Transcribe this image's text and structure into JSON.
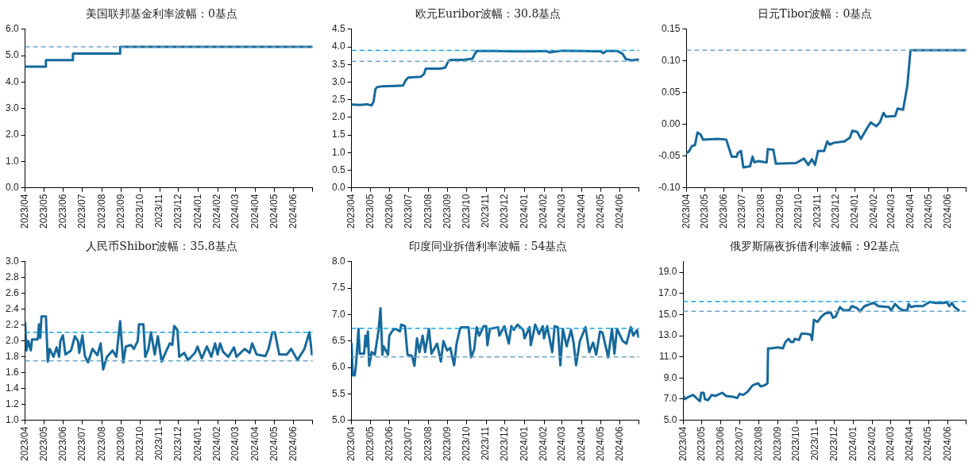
{
  "chart_data": [
    {
      "type": "step",
      "title": "美国联邦基金利率波幅：0基点",
      "marker": "none",
      "grid": false,
      "legend": false,
      "xlim": [
        "2023-04-01",
        "2024-07-01"
      ],
      "xticks": [
        {
          "value": "2023-04",
          "label": "2023/04"
        },
        {
          "value": "2023-05",
          "label": "2023/05"
        },
        {
          "value": "2023-06",
          "label": "2023/06"
        },
        {
          "value": "2023-07",
          "label": "2023/07"
        },
        {
          "value": "2023-08",
          "label": "2023/08"
        },
        {
          "value": "2023-09",
          "label": "2023/09"
        },
        {
          "value": "2023-10",
          "label": "2023/10"
        },
        {
          "value": "2023-11",
          "label": "2023/11"
        },
        {
          "value": "2023-12",
          "label": "2023/12"
        },
        {
          "value": "2024-01",
          "label": "2024/01"
        },
        {
          "value": "2024-02",
          "label": "2024/02"
        },
        {
          "value": "2024-03",
          "label": "2024/03"
        },
        {
          "value": "2024-04",
          "label": "2024/04"
        },
        {
          "value": "2024-05",
          "label": "2024/05"
        },
        {
          "value": "2024-06",
          "label": "2024/06"
        },
        {
          "value": "2024-07",
          "label": null
        }
      ],
      "ylim": [
        0,
        6
      ],
      "yticks": [
        {
          "value": 0,
          "label": "0.0"
        },
        {
          "value": 1,
          "label": "1.0"
        },
        {
          "value": 2,
          "label": "2.0"
        },
        {
          "value": 3,
          "label": "3.0"
        },
        {
          "value": 4,
          "label": "4.0"
        },
        {
          "value": 5,
          "label": "5.0"
        },
        {
          "value": 6,
          "label": "6.0"
        }
      ],
      "ref_lines": [
        {
          "axis": "y",
          "value": 5.33,
          "color": "#6fa4c4",
          "line_style": "dashed"
        }
      ],
      "series": [
        {
          "color": "#17699b",
          "x": [
            "2023-04-01",
            "2023-05-04",
            "2023-06-16",
            "2023-08-30",
            "2024-06-30"
          ],
          "values": [
            4.58,
            4.83,
            5.08,
            5.33,
            5.33
          ]
        }
      ]
    },
    {
      "type": "line",
      "title": "欧元Euribor波幅：30.8基点",
      "marker": "none",
      "grid": false,
      "legend": false,
      "xlim": [
        "2023-04-01",
        "2024-07-01"
      ],
      "xticks": [
        {
          "value": "2023-04",
          "label": "2023/04"
        },
        {
          "value": "2023-05",
          "label": "2023/05"
        },
        {
          "value": "2023-06",
          "label": "2023/06"
        },
        {
          "value": "2023-07",
          "label": "2023/07"
        },
        {
          "value": "2023-08",
          "label": "2023/08"
        },
        {
          "value": "2023-09",
          "label": "2023/09"
        },
        {
          "value": "2023-10",
          "label": "2023/10"
        },
        {
          "value": "2023-11",
          "label": "2023/11"
        },
        {
          "value": "2023-12",
          "label": "2023/12"
        },
        {
          "value": "2024-01",
          "label": "2024/01"
        },
        {
          "value": "2024-02",
          "label": "2024/02"
        },
        {
          "value": "2024-03",
          "label": "2024/03"
        },
        {
          "value": "2024-04",
          "label": "2024/04"
        },
        {
          "value": "2024-05",
          "label": "2024/05"
        },
        {
          "value": "2024-06",
          "label": "2024/06"
        },
        {
          "value": "2024-07",
          "label": null
        }
      ],
      "ylim": [
        0,
        4.5
      ],
      "yticks": [
        {
          "value": 0,
          "label": "0.0"
        },
        {
          "value": 0.5,
          "label": "0.5"
        },
        {
          "value": 1,
          "label": "1.0"
        },
        {
          "value": 1.5,
          "label": "1.5"
        },
        {
          "value": 2,
          "label": "2.0"
        },
        {
          "value": 2.5,
          "label": "2.5"
        },
        {
          "value": 3,
          "label": "3.0"
        },
        {
          "value": 3.5,
          "label": "3.5"
        },
        {
          "value": 4,
          "label": "4.0"
        },
        {
          "value": 4.5,
          "label": "4.5"
        }
      ],
      "ref_lines": [
        {
          "axis": "y",
          "value": 3.9,
          "color": "#1aa3dc",
          "line_style": "dashed"
        },
        {
          "axis": "y",
          "value": 3.59,
          "color": "#6fa4c4",
          "line_style": "dashed"
        }
      ],
      "series": [
        {
          "color": "#17699b",
          "x": [
            "2023-04-01",
            "2023-04-15",
            "2023-04-25",
            "2023-05-03",
            "2023-05-06",
            "2023-05-09",
            "2023-05-12",
            "2023-05-20",
            "2023-06-10",
            "2023-06-22",
            "2023-06-26",
            "2023-06-30",
            "2023-07-10",
            "2023-07-20",
            "2023-07-25",
            "2023-07-28",
            "2023-08-05",
            "2023-08-20",
            "2023-08-28",
            "2023-09-02",
            "2023-09-06",
            "2023-09-25",
            "2023-10-10",
            "2023-10-14",
            "2023-10-17",
            "2023-11-15",
            "2023-12-15",
            "2024-01-15",
            "2024-02-05",
            "2024-02-10",
            "2024-03-01",
            "2024-04-01",
            "2024-05-01",
            "2024-05-05",
            "2024-05-10",
            "2024-05-28",
            "2024-06-05",
            "2024-06-10",
            "2024-06-20",
            "2024-06-30"
          ],
          "values": [
            2.36,
            2.35,
            2.37,
            2.34,
            2.45,
            2.8,
            2.86,
            2.88,
            2.89,
            2.9,
            3.05,
            3.13,
            3.14,
            3.15,
            3.22,
            3.38,
            3.38,
            3.38,
            3.41,
            3.6,
            3.63,
            3.63,
            3.66,
            3.8,
            3.88,
            3.88,
            3.87,
            3.87,
            3.88,
            3.84,
            3.89,
            3.88,
            3.87,
            3.82,
            3.88,
            3.88,
            3.8,
            3.65,
            3.62,
            3.64
          ]
        }
      ]
    },
    {
      "type": "line",
      "title": "日元Tibor波幅：0基点",
      "marker": "none",
      "grid": false,
      "legend": false,
      "xlim": [
        "2023-04-01",
        "2024-07-01"
      ],
      "xticks": [
        {
          "value": "2023-04",
          "label": "2023/04"
        },
        {
          "value": "2023-05",
          "label": "2023/05"
        },
        {
          "value": "2023-06",
          "label": "2023/06"
        },
        {
          "value": "2023-07",
          "label": "2023/07"
        },
        {
          "value": "2023-08",
          "label": "2023/08"
        },
        {
          "value": "2023-09",
          "label": "2023/09"
        },
        {
          "value": "2023-10",
          "label": "2023/10"
        },
        {
          "value": "2023-11",
          "label": "2023/11"
        },
        {
          "value": "2023-12",
          "label": "2023/12"
        },
        {
          "value": "2024-01",
          "label": "2024/01"
        },
        {
          "value": "2024-02",
          "label": "2024/02"
        },
        {
          "value": "2024-03",
          "label": "2024/03"
        },
        {
          "value": "2024-04",
          "label": "2024/04"
        },
        {
          "value": "2024-05",
          "label": "2024/05"
        },
        {
          "value": "2024-06",
          "label": "2024/06"
        },
        {
          "value": "2024-07",
          "label": null
        }
      ],
      "ylim": [
        -0.1,
        0.15
      ],
      "yticks": [
        {
          "value": -0.1,
          "label": "-0.10"
        },
        {
          "value": -0.05,
          "label": "-0.05"
        },
        {
          "value": 0,
          "label": "0.00"
        },
        {
          "value": 0.05,
          "label": "0.05"
        },
        {
          "value": 0.1,
          "label": "0.10"
        },
        {
          "value": 0.15,
          "label": "0.15"
        }
      ],
      "ref_lines": [
        {
          "axis": "y",
          "value": 0.117,
          "color": "#6fa4c4",
          "line_style": "dashed"
        }
      ],
      "series": [
        {
          "color": "#17699b",
          "x": [
            "2023-04-01",
            "2023-04-05",
            "2023-04-10",
            "2023-04-15",
            "2023-04-19",
            "2023-04-24",
            "2023-04-28",
            "2023-05-22",
            "2023-06-05",
            "2023-06-09",
            "2023-06-14",
            "2023-06-22",
            "2023-06-24",
            "2023-06-29",
            "2023-07-03",
            "2023-07-14",
            "2023-07-18",
            "2023-07-21",
            "2023-07-27",
            "2023-08-10",
            "2023-08-12",
            "2023-08-21",
            "2023-08-25",
            "2023-09-27",
            "2023-10-10",
            "2023-10-17",
            "2023-10-23",
            "2023-10-28",
            "2023-11-02",
            "2023-11-12",
            "2023-11-17",
            "2023-11-21",
            "2023-11-28",
            "2023-12-15",
            "2023-12-24",
            "2023-12-28",
            "2024-01-05",
            "2024-01-11",
            "2024-01-20",
            "2024-01-27",
            "2024-02-05",
            "2024-02-11",
            "2024-02-17",
            "2024-02-21",
            "2024-03-07",
            "2024-03-11",
            "2024-03-20",
            "2024-03-27",
            "2024-04-01",
            "2024-06-30"
          ],
          "values": [
            -0.045,
            -0.043,
            -0.034,
            -0.033,
            -0.013,
            -0.016,
            -0.024,
            -0.023,
            -0.024,
            -0.036,
            -0.051,
            -0.051,
            -0.045,
            -0.042,
            -0.068,
            -0.066,
            -0.051,
            -0.06,
            -0.058,
            -0.06,
            -0.039,
            -0.04,
            -0.062,
            -0.061,
            -0.054,
            -0.064,
            -0.055,
            -0.064,
            -0.042,
            -0.042,
            -0.027,
            -0.032,
            -0.029,
            -0.027,
            -0.021,
            -0.01,
            -0.012,
            -0.023,
            -0.008,
            0.003,
            -0.003,
            0.003,
            0.018,
            0.012,
            0.013,
            0.025,
            0.023,
            0.062,
            0.117,
            0.117
          ]
        }
      ]
    },
    {
      "type": "line",
      "title": "人民币Shibor波幅：35.8基点",
      "marker": "none",
      "grid": false,
      "legend": false,
      "xlim": [
        "2023-04-01",
        "2024-07-01"
      ],
      "xticks": [
        {
          "value": "2023-04",
          "label": "2023/04"
        },
        {
          "value": "2023-05",
          "label": "2023/05"
        },
        {
          "value": "2023-06",
          "label": "2023/06"
        },
        {
          "value": "2023-07",
          "label": "2023/07"
        },
        {
          "value": "2023-08",
          "label": "2023/08"
        },
        {
          "value": "2023-09",
          "label": "2023/09"
        },
        {
          "value": "2023-10",
          "label": "2023/10"
        },
        {
          "value": "2023-11",
          "label": "2023/11"
        },
        {
          "value": "2023-12",
          "label": "2023/12"
        },
        {
          "value": "2024-01",
          "label": "2024/01"
        },
        {
          "value": "2024-02",
          "label": "2024/02"
        },
        {
          "value": "2024-03",
          "label": "2024/03"
        },
        {
          "value": "2024-04",
          "label": "2024/04"
        },
        {
          "value": "2024-05",
          "label": "2024/05"
        },
        {
          "value": "2024-06",
          "label": "2024/06"
        },
        {
          "value": "2024-07",
          "label": null
        }
      ],
      "ylim": [
        1,
        3
      ],
      "yticks": [
        {
          "value": 1,
          "label": "1.0"
        },
        {
          "value": 1.2,
          "label": "1.2"
        },
        {
          "value": 1.4,
          "label": "1.4"
        },
        {
          "value": 1.6,
          "label": "1.6"
        },
        {
          "value": 1.8,
          "label": "1.8"
        },
        {
          "value": 2,
          "label": "2.0"
        },
        {
          "value": 2.2,
          "label": "2.2"
        },
        {
          "value": 2.4,
          "label": "2.4"
        },
        {
          "value": 2.6,
          "label": "2.6"
        },
        {
          "value": 2.8,
          "label": "2.8"
        },
        {
          "value": 3,
          "label": "3.0"
        }
      ],
      "ref_lines": [
        {
          "axis": "y",
          "value": 2.11,
          "color": "#1aa3dc",
          "line_style": "dashed"
        },
        {
          "axis": "y",
          "value": 1.75,
          "color": "#6fa4c4",
          "line_style": "dashed"
        }
      ],
      "series": [
        {
          "color": "#17699b",
          "x": [
            "2023-04-01",
            "2023-04-03",
            "2023-04-06",
            "2023-04-10",
            "2023-04-12",
            "2023-04-21",
            "2023-04-23",
            "2023-04-25",
            "2023-04-27",
            "2023-05-04",
            "2023-05-07",
            "2023-05-10",
            "2023-05-16",
            "2023-05-21",
            "2023-05-25",
            "2023-05-27",
            "2023-05-31",
            "2023-06-04",
            "2023-06-13",
            "2023-06-19",
            "2023-06-24",
            "2023-06-26",
            "2023-07-01",
            "2023-07-05",
            "2023-07-10",
            "2023-07-17",
            "2023-07-25",
            "2023-07-30",
            "2023-08-03",
            "2023-08-09",
            "2023-08-18",
            "2023-08-24",
            "2023-08-30",
            "2023-09-04",
            "2023-09-08",
            "2023-09-16",
            "2023-09-21",
            "2023-09-27",
            "2023-09-29",
            "2023-10-06",
            "2023-10-09",
            "2023-10-14",
            "2023-10-18",
            "2023-10-24",
            "2023-10-29",
            "2023-11-04",
            "2023-11-10",
            "2023-11-17",
            "2023-11-21",
            "2023-11-24",
            "2023-11-29",
            "2023-12-02",
            "2023-12-10",
            "2023-12-16",
            "2023-12-27",
            "2023-12-31",
            "2024-01-07",
            "2024-01-15",
            "2024-01-22",
            "2024-01-28",
            "2024-02-01",
            "2024-02-05",
            "2024-02-10",
            "2024-02-18",
            "2024-02-27",
            "2024-03-02",
            "2024-03-15",
            "2024-03-23",
            "2024-03-27",
            "2024-04-03",
            "2024-04-17",
            "2024-04-22",
            "2024-04-28",
            "2024-05-02",
            "2024-05-09",
            "2024-05-21",
            "2024-05-28",
            "2024-06-07",
            "2024-06-18",
            "2024-06-26",
            "2024-06-30"
          ],
          "values": [
            2.23,
            1.88,
            2.0,
            1.88,
            2.02,
            2.02,
            2.21,
            2.04,
            2.31,
            2.31,
            1.74,
            1.9,
            1.8,
            1.92,
            1.8,
            2.0,
            2.07,
            1.83,
            1.88,
            2.06,
            2.0,
            1.85,
            2.07,
            1.81,
            1.73,
            1.9,
            1.82,
            1.97,
            1.64,
            1.8,
            1.88,
            1.8,
            2.25,
            1.73,
            1.93,
            1.95,
            1.9,
            2.0,
            2.21,
            2.21,
            1.8,
            1.9,
            2.11,
            1.83,
            2.06,
            1.74,
            1.85,
            1.97,
            1.95,
            2.19,
            2.14,
            1.8,
            1.85,
            1.76,
            1.85,
            1.93,
            1.78,
            1.93,
            1.8,
            1.97,
            1.83,
            1.97,
            1.86,
            1.8,
            1.92,
            1.8,
            1.9,
            1.85,
            1.97,
            1.83,
            1.81,
            1.9,
            2.11,
            2.11,
            1.83,
            1.83,
            1.9,
            1.76,
            1.9,
            2.11,
            1.83
          ]
        }
      ]
    },
    {
      "type": "line",
      "title": "印度同业拆借利率波幅：54基点",
      "marker": "none",
      "grid": false,
      "legend": false,
      "xlim": [
        "2023-04-01",
        "2024-07-01"
      ],
      "xticks": [
        {
          "value": "2023-04",
          "label": "2023/04"
        },
        {
          "value": "2023-05",
          "label": "2023/05"
        },
        {
          "value": "2023-06",
          "label": "2023/06"
        },
        {
          "value": "2023-07",
          "label": "2023/07"
        },
        {
          "value": "2023-08",
          "label": "2023/08"
        },
        {
          "value": "2023-09",
          "label": "2023/09"
        },
        {
          "value": "2023-10",
          "label": "2023/10"
        },
        {
          "value": "2023-11",
          "label": "2023/11"
        },
        {
          "value": "2023-12",
          "label": "2023/12"
        },
        {
          "value": "2024-01",
          "label": "2024/01"
        },
        {
          "value": "2024-02",
          "label": "2024/02"
        },
        {
          "value": "2024-03",
          "label": "2024/03"
        },
        {
          "value": "2024-04",
          "label": "2024/04"
        },
        {
          "value": "2024-05",
          "label": "2024/05"
        },
        {
          "value": "2024-06",
          "label": "2024/06"
        },
        {
          "value": "2024-07",
          "label": null
        }
      ],
      "ylim": [
        5,
        8
      ],
      "yticks": [
        {
          "value": 5,
          "label": "5.0"
        },
        {
          "value": 5.5,
          "label": "5.5"
        },
        {
          "value": 6,
          "label": "6.0"
        },
        {
          "value": 6.5,
          "label": "6.5"
        },
        {
          "value": 7,
          "label": "7.0"
        },
        {
          "value": 7.5,
          "label": "7.5"
        },
        {
          "value": 8,
          "label": "8.0"
        }
      ],
      "ref_lines": [
        {
          "axis": "y",
          "value": 6.74,
          "color": "#1aa3dc",
          "line_style": "dashed"
        },
        {
          "axis": "y",
          "value": 6.2,
          "color": "#6fa4c4",
          "line_style": "dashed"
        }
      ],
      "series": [
        {
          "color": "#17699b",
          "x": [
            "2023-04-01",
            "2023-04-03",
            "2023-04-06",
            "2023-04-08",
            "2023-04-12",
            "2023-04-14",
            "2023-04-21",
            "2023-04-23",
            "2023-04-25",
            "2023-04-27",
            "2023-04-29",
            "2023-05-03",
            "2023-05-08",
            "2023-05-12",
            "2023-05-14",
            "2023-05-17",
            "2023-05-20",
            "2023-05-22",
            "2023-05-29",
            "2023-05-31",
            "2023-06-06",
            "2023-06-10",
            "2023-06-13",
            "2023-06-17",
            "2023-06-19",
            "2023-06-25",
            "2023-06-29",
            "2023-07-06",
            "2023-07-10",
            "2023-07-14",
            "2023-07-18",
            "2023-07-23",
            "2023-07-27",
            "2023-08-02",
            "2023-08-06",
            "2023-08-15",
            "2023-08-21",
            "2023-08-25",
            "2023-08-31",
            "2023-09-05",
            "2023-09-11",
            "2023-09-15",
            "2023-09-20",
            "2023-09-22",
            "2023-10-04",
            "2023-10-08",
            "2023-10-13",
            "2023-10-17",
            "2023-10-21",
            "2023-10-28",
            "2023-11-01",
            "2023-11-03",
            "2023-11-07",
            "2023-11-20",
            "2023-11-22",
            "2023-11-30",
            "2023-12-07",
            "2023-12-11",
            "2023-12-15",
            "2023-12-21",
            "2023-12-30",
            "2024-01-01",
            "2024-01-09",
            "2024-01-11",
            "2024-01-18",
            "2024-01-24",
            "2024-01-30",
            "2024-02-01",
            "2024-02-06",
            "2024-02-14",
            "2024-02-18",
            "2024-02-23",
            "2024-02-27",
            "2024-03-02",
            "2024-03-08",
            "2024-03-15",
            "2024-03-19",
            "2024-03-23",
            "2024-03-29",
            "2024-04-07",
            "2024-04-13",
            "2024-04-19",
            "2024-04-24",
            "2024-04-30",
            "2024-05-04",
            "2024-05-13",
            "2024-05-19",
            "2024-05-23",
            "2024-05-27",
            "2024-06-05",
            "2024-06-11",
            "2024-06-18",
            "2024-06-22",
            "2024-06-28",
            "2024-06-30"
          ],
          "values": [
            6.45,
            5.85,
            5.85,
            6.04,
            6.73,
            6.26,
            6.26,
            6.6,
            6.4,
            6.68,
            6.03,
            6.29,
            6.24,
            6.55,
            6.71,
            7.12,
            6.24,
            6.4,
            6.24,
            6.6,
            6.71,
            6.73,
            6.71,
            6.68,
            6.81,
            6.78,
            6.24,
            6.22,
            6.03,
            6.55,
            6.29,
            6.6,
            6.29,
            6.73,
            6.26,
            6.45,
            6.11,
            6.5,
            6.32,
            6.37,
            6.04,
            6.45,
            6.71,
            6.76,
            6.76,
            6.19,
            6.34,
            6.76,
            6.6,
            6.78,
            6.78,
            6.42,
            6.73,
            6.76,
            6.6,
            6.78,
            6.45,
            6.78,
            6.71,
            6.81,
            6.71,
            6.55,
            6.76,
            6.42,
            6.81,
            6.63,
            6.78,
            6.55,
            6.78,
            6.29,
            6.78,
            6.76,
            6.04,
            6.73,
            6.4,
            6.71,
            6.47,
            6.04,
            6.5,
            6.76,
            6.29,
            6.47,
            6.24,
            6.68,
            6.66,
            6.19,
            6.73,
            6.26,
            6.73,
            6.5,
            6.45,
            6.76,
            6.6,
            6.71,
            6.58
          ]
        }
      ]
    },
    {
      "type": "line",
      "title": "俄罗斯隔夜拆借利率波幅：92基点",
      "marker": "none",
      "grid": false,
      "legend": false,
      "xlim": [
        "2023-04-01",
        "2024-07-01"
      ],
      "xticks": [
        {
          "value": "2023-04",
          "label": "2023/04"
        },
        {
          "value": "2023-05",
          "label": "2023/05"
        },
        {
          "value": "2023-06",
          "label": "2023/06"
        },
        {
          "value": "2023-07",
          "label": "2023/07"
        },
        {
          "value": "2023-08",
          "label": "2023/08"
        },
        {
          "value": "2023-09",
          "label": "2023/09"
        },
        {
          "value": "2023-10",
          "label": "2023/10"
        },
        {
          "value": "2023-11",
          "label": "2023/11"
        },
        {
          "value": "2023-12",
          "label": "2023/12"
        },
        {
          "value": "2024-01",
          "label": "2024/01"
        },
        {
          "value": "2024-02",
          "label": "2024/02"
        },
        {
          "value": "2024-03",
          "label": "2024/03"
        },
        {
          "value": "2024-04",
          "label": "2024/04"
        },
        {
          "value": "2024-05",
          "label": "2024/05"
        },
        {
          "value": "2024-06",
          "label": "2024/06"
        },
        {
          "value": "2024-07",
          "label": null
        }
      ],
      "ylim": [
        5,
        20
      ],
      "yticks": [
        {
          "value": 5,
          "label": "5.0"
        },
        {
          "value": 7,
          "label": "7.0"
        },
        {
          "value": 9,
          "label": "9.0"
        },
        {
          "value": 11,
          "label": "11.0"
        },
        {
          "value": 13,
          "label": "13.0"
        },
        {
          "value": 15,
          "label": "15.0"
        },
        {
          "value": 17,
          "label": "17.0"
        },
        {
          "value": 19,
          "label": "19.0"
        }
      ],
      "ref_lines": [
        {
          "axis": "y",
          "value": 16.24,
          "color": "#1aa3dc",
          "line_style": "dashed"
        },
        {
          "axis": "y",
          "value": 15.32,
          "color": "#6fa4c4",
          "line_style": "dashed"
        }
      ],
      "series": [
        {
          "color": "#17699b",
          "x": [
            "2023-04-01",
            "2023-04-04",
            "2023-04-09",
            "2023-04-17",
            "2023-04-24",
            "2023-04-28",
            "2023-04-30",
            "2023-05-04",
            "2023-05-06",
            "2023-05-11",
            "2023-05-17",
            "2023-05-23",
            "2023-06-03",
            "2023-06-09",
            "2023-06-22",
            "2023-06-27",
            "2023-07-01",
            "2023-07-07",
            "2023-07-14",
            "2023-07-22",
            "2023-07-31",
            "2023-08-04",
            "2023-08-10",
            "2023-08-15",
            "2023-08-16",
            "2023-08-21",
            "2023-09-01",
            "2023-09-09",
            "2023-09-13",
            "2023-09-18",
            "2023-09-22",
            "2023-09-26",
            "2023-09-28",
            "2023-10-05",
            "2023-10-09",
            "2023-10-15",
            "2023-10-24",
            "2023-10-26",
            "2023-10-29",
            "2023-11-04",
            "2023-11-10",
            "2023-11-16",
            "2023-11-25",
            "2023-11-29",
            "2023-12-03",
            "2023-12-10",
            "2023-12-16",
            "2023-12-25",
            "2023-12-29",
            "2024-01-07",
            "2024-01-11",
            "2024-01-19",
            "2024-01-28",
            "2024-02-03",
            "2024-02-10",
            "2024-02-27",
            "2024-03-02",
            "2024-03-08",
            "2024-03-15",
            "2024-03-21",
            "2024-03-28",
            "2024-03-30",
            "2024-04-03",
            "2024-04-09",
            "2024-04-22",
            "2024-05-03",
            "2024-05-13",
            "2024-05-26",
            "2024-05-30",
            "2024-06-04",
            "2024-06-08",
            "2024-06-12",
            "2024-06-19"
          ],
          "values": [
            7.3,
            7.0,
            7.2,
            7.4,
            7.0,
            6.8,
            7.6,
            7.6,
            7.0,
            6.9,
            7.4,
            7.3,
            7.6,
            7.3,
            7.2,
            7.1,
            7.5,
            7.4,
            7.7,
            8.3,
            8.5,
            8.2,
            8.3,
            8.5,
            11.8,
            11.8,
            11.9,
            11.8,
            12.4,
            12.7,
            12.4,
            12.4,
            12.7,
            12.6,
            13.2,
            13.2,
            13.1,
            12.6,
            14.5,
            14.3,
            14.8,
            15.1,
            15.2,
            14.7,
            14.8,
            15.7,
            15.4,
            15.4,
            15.8,
            15.6,
            15.3,
            15.8,
            16.0,
            16.1,
            15.8,
            15.7,
            15.4,
            16.0,
            15.6,
            15.4,
            15.4,
            16.0,
            15.7,
            15.8,
            15.8,
            16.2,
            16.1,
            16.1,
            16.2,
            15.8,
            16.1,
            15.7,
            15.4
          ]
        }
      ]
    }
  ]
}
